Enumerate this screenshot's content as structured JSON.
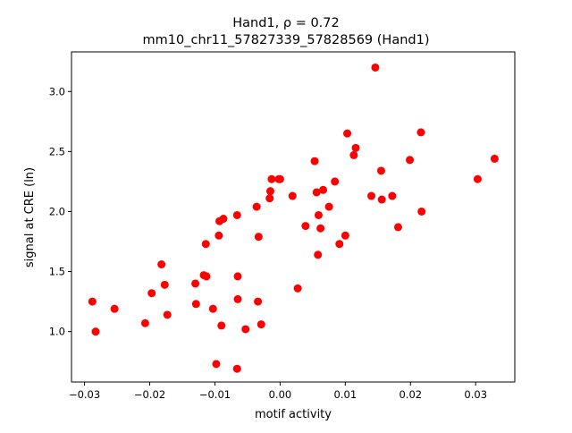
{
  "chart_data": {
    "type": "scatter",
    "title_line1": "Hand1, ρ = 0.72",
    "title_line2": "mm10_chr11_57827339_57828569 (Hand1)",
    "xlabel": "motif activity",
    "ylabel": "signal at CRE (ln)",
    "xlim": [
      -0.032,
      0.036
    ],
    "ylim": [
      0.58,
      3.33
    ],
    "grid": false,
    "marker_color": "#ff0000",
    "x_ticks": [
      {
        "value": -0.03,
        "label": "−0.03"
      },
      {
        "value": -0.02,
        "label": "−0.02"
      },
      {
        "value": -0.01,
        "label": "−0.01"
      },
      {
        "value": 0.0,
        "label": "0.00"
      },
      {
        "value": 0.01,
        "label": "0.01"
      },
      {
        "value": 0.02,
        "label": "0.02"
      },
      {
        "value": 0.03,
        "label": "0.03"
      }
    ],
    "y_ticks": [
      {
        "value": 1.0,
        "label": "1.0"
      },
      {
        "value": 1.5,
        "label": "1.5"
      },
      {
        "value": 2.0,
        "label": "2.0"
      },
      {
        "value": 2.5,
        "label": "2.5"
      },
      {
        "value": 3.0,
        "label": "3.0"
      }
    ],
    "points": [
      {
        "x": -0.0288,
        "y": 1.25
      },
      {
        "x": -0.0283,
        "y": 1.0
      },
      {
        "x": -0.0254,
        "y": 1.19
      },
      {
        "x": -0.0207,
        "y": 1.07
      },
      {
        "x": -0.0197,
        "y": 1.32
      },
      {
        "x": -0.0182,
        "y": 1.56
      },
      {
        "x": -0.0177,
        "y": 1.39
      },
      {
        "x": -0.0173,
        "y": 1.14
      },
      {
        "x": -0.013,
        "y": 1.4
      },
      {
        "x": -0.0129,
        "y": 1.23
      },
      {
        "x": -0.0117,
        "y": 1.47
      },
      {
        "x": -0.0114,
        "y": 1.73
      },
      {
        "x": -0.0113,
        "y": 1.46
      },
      {
        "x": -0.0103,
        "y": 1.19
      },
      {
        "x": -0.0098,
        "y": 0.73
      },
      {
        "x": -0.0094,
        "y": 1.8
      },
      {
        "x": -0.0093,
        "y": 1.92
      },
      {
        "x": -0.009,
        "y": 1.05
      },
      {
        "x": -0.0087,
        "y": 1.94
      },
      {
        "x": -0.0066,
        "y": 1.97
      },
      {
        "x": -0.0065,
        "y": 1.46
      },
      {
        "x": -0.0065,
        "y": 1.27
      },
      {
        "x": -0.0066,
        "y": 0.69
      },
      {
        "x": -0.0053,
        "y": 1.02
      },
      {
        "x": -0.0036,
        "y": 2.04
      },
      {
        "x": -0.0034,
        "y": 1.25
      },
      {
        "x": -0.0033,
        "y": 1.79
      },
      {
        "x": -0.0029,
        "y": 1.06
      },
      {
        "x": -0.0016,
        "y": 2.11
      },
      {
        "x": -0.0015,
        "y": 2.17
      },
      {
        "x": -0.0013,
        "y": 2.27
      },
      {
        "x": -0.0002,
        "y": 2.27
      },
      {
        "x": 0.0,
        "y": 2.27
      },
      {
        "x": 0.0019,
        "y": 2.13
      },
      {
        "x": 0.0027,
        "y": 1.36
      },
      {
        "x": 0.0039,
        "y": 1.88
      },
      {
        "x": 0.0053,
        "y": 2.42
      },
      {
        "x": 0.0056,
        "y": 2.16
      },
      {
        "x": 0.0058,
        "y": 1.64
      },
      {
        "x": 0.0059,
        "y": 1.97
      },
      {
        "x": 0.0062,
        "y": 1.86
      },
      {
        "x": 0.0066,
        "y": 2.18
      },
      {
        "x": 0.0075,
        "y": 2.04
      },
      {
        "x": 0.0084,
        "y": 2.25
      },
      {
        "x": 0.0091,
        "y": 1.73
      },
      {
        "x": 0.01,
        "y": 1.8
      },
      {
        "x": 0.0103,
        "y": 2.65
      },
      {
        "x": 0.0113,
        "y": 2.47
      },
      {
        "x": 0.0116,
        "y": 2.53
      },
      {
        "x": 0.014,
        "y": 2.13
      },
      {
        "x": 0.0146,
        "y": 3.2
      },
      {
        "x": 0.0155,
        "y": 2.34
      },
      {
        "x": 0.0156,
        "y": 2.1
      },
      {
        "x": 0.0172,
        "y": 2.13
      },
      {
        "x": 0.0181,
        "y": 1.87
      },
      {
        "x": 0.0199,
        "y": 2.43
      },
      {
        "x": 0.0216,
        "y": 2.66
      },
      {
        "x": 0.0217,
        "y": 2.0
      },
      {
        "x": 0.0303,
        "y": 2.27
      },
      {
        "x": 0.0329,
        "y": 2.44
      }
    ]
  }
}
